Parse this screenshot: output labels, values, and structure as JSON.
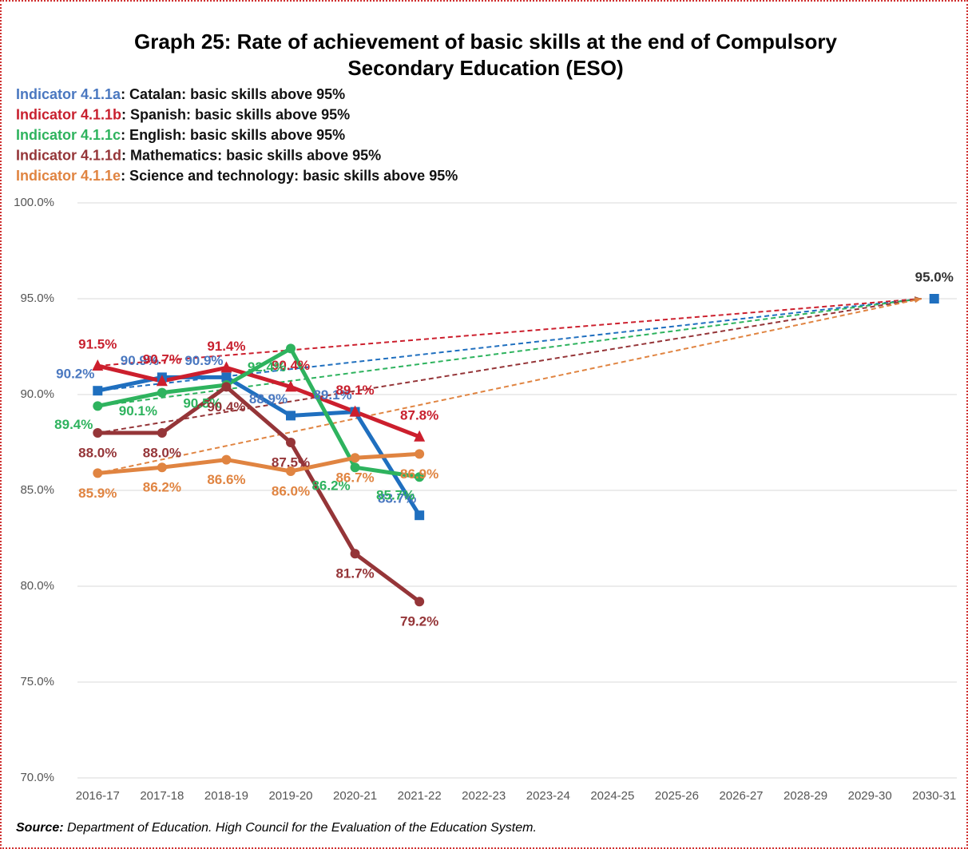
{
  "chart_data": {
    "type": "line",
    "title": [
      "Graph 25: Rate of achievement of basic skills at the end of Compulsory",
      "Secondary Education (ESO)"
    ],
    "categories": [
      "2016-17",
      "2017-18",
      "2018-19",
      "2019-20",
      "2020-21",
      "2021-22",
      "2022-23",
      "2023-24",
      "2024-25",
      "2025-26",
      "2026-27",
      "2028-29",
      "2029-30",
      "2030-31"
    ],
    "ylim": [
      70,
      100
    ],
    "yticks": [
      {
        "value": 70,
        "label": "70.0%"
      },
      {
        "value": 75,
        "label": "75.0%"
      },
      {
        "value": 80,
        "label": "80.0%"
      },
      {
        "value": 85,
        "label": "85.0%"
      },
      {
        "value": 90,
        "label": "90.0%"
      },
      {
        "value": 95,
        "label": "95.0%"
      },
      {
        "value": 100,
        "label": "100.0%"
      }
    ],
    "grid": true,
    "series": [
      {
        "name": "Indicator 4.1.1a",
        "description": ": Catalan: basic skills above 95%",
        "color": "#1f6fbf",
        "label_color": "#4a78c0",
        "marker": "square",
        "values": [
          90.2,
          90.9,
          90.9,
          88.9,
          89.1,
          83.7,
          null,
          null,
          null,
          null,
          null,
          null,
          null,
          null
        ],
        "value_labels": [
          "90.2%",
          "90.9%",
          "90.9%",
          "88.9%",
          "89.1%",
          "83.7%",
          null,
          null,
          null,
          null,
          null,
          null,
          null,
          null
        ]
      },
      {
        "name": "Indicator 4.1.1b",
        "description": ": Spanish: basic skills above 95%",
        "color": "#cc1f2d",
        "label_color": "#c8202e",
        "marker": "triangle",
        "values": [
          91.5,
          90.7,
          91.4,
          90.4,
          89.1,
          87.8,
          null,
          null,
          null,
          null,
          null,
          null,
          null,
          null
        ],
        "value_labels": [
          "91.5%",
          "90.7%",
          "91.4%",
          "90.4%",
          "89.1%",
          "87.8%",
          null,
          null,
          null,
          null,
          null,
          null,
          null,
          null
        ]
      },
      {
        "name": "Indicator 4.1.1c",
        "description": ": English: basic skills above 95%",
        "color": "#2eb35e",
        "label_color": "#2eb35e",
        "marker": "circle",
        "values": [
          89.4,
          90.1,
          90.5,
          92.4,
          86.2,
          85.7,
          null,
          null,
          null,
          null,
          null,
          null,
          null,
          null
        ],
        "value_labels": [
          "89.4%",
          "90.1%",
          "90.5%",
          "92.4%",
          "86.2%",
          "85.7%",
          null,
          null,
          null,
          null,
          null,
          null,
          null,
          null
        ]
      },
      {
        "name": "Indicator 4.1.1d",
        "description": ": Mathematics: basic skills above 95%",
        "color": "#953538",
        "label_color": "#953538",
        "marker": "circle",
        "values": [
          88.0,
          88.0,
          90.4,
          87.5,
          81.7,
          79.2,
          null,
          null,
          null,
          null,
          null,
          null,
          null,
          null
        ],
        "value_labels": [
          "88.0%",
          "88.0%",
          "90.4%",
          "87.5%",
          "81.7%",
          "79.2%",
          null,
          null,
          null,
          null,
          null,
          null,
          null,
          null
        ]
      },
      {
        "name": "Indicator 4.1.1e",
        "description": ": Science and technology: basic skills above 95%",
        "color": "#e08441",
        "label_color": "#e08441",
        "marker": "circle",
        "values": [
          85.9,
          86.2,
          86.6,
          86.0,
          86.7,
          86.9,
          null,
          null,
          null,
          null,
          null,
          null,
          null,
          null
        ],
        "value_labels": [
          "85.9%",
          "86.2%",
          "86.6%",
          "86.0%",
          "86.7%",
          "86.9%",
          null,
          null,
          null,
          null,
          null,
          null,
          null,
          null
        ]
      }
    ],
    "target": {
      "color": "#1f6fbf",
      "label_color": "#333333",
      "values": [
        null,
        null,
        null,
        null,
        null,
        null,
        null,
        null,
        null,
        null,
        null,
        null,
        null,
        95.0
      ],
      "value_labels": [
        null,
        null,
        null,
        null,
        null,
        null,
        null,
        null,
        null,
        null,
        null,
        null,
        null,
        "95.0%"
      ]
    },
    "source_label": "Source:",
    "source": " Department of Education. High Council for the Evaluation of the Education System."
  }
}
